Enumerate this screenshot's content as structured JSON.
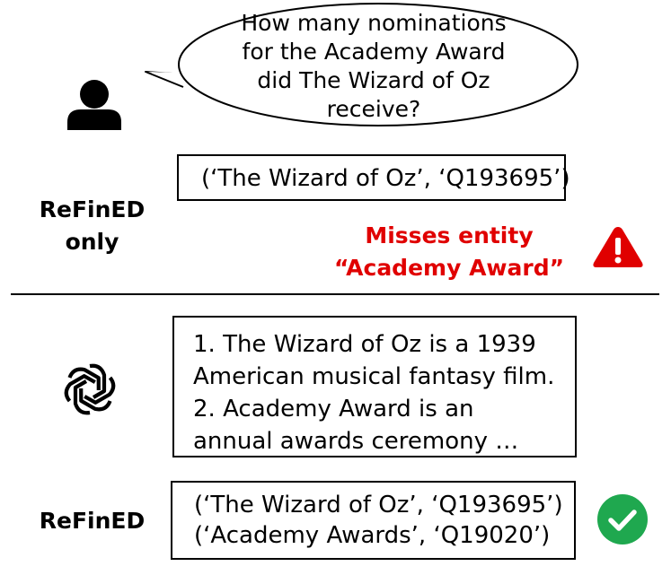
{
  "question": {
    "lines": [
      "How many nominations",
      "for the Academy Award",
      "did The Wizard of Oz",
      "receive?"
    ]
  },
  "refined_only": {
    "label_line1": "ReFinED",
    "label_line2": "only",
    "output": "(‘The Wizard of Oz’, ‘Q193695’)",
    "warning_line1": "Misses entity",
    "warning_line2": "“Academy Award”"
  },
  "llm_context": {
    "lines": [
      "1. The Wizard of Oz is a 1939",
      "American musical fantasy film.",
      "2. Academy Award is an",
      "annual awards ceremony …"
    ]
  },
  "refined": {
    "label": "ReFinED",
    "outputs": [
      "(‘The Wizard of Oz’, ‘Q193695’)",
      "(‘Academy Awards’, ‘Q19020’)"
    ]
  },
  "colors": {
    "warning": "#e00000",
    "success": "#1fa84f"
  },
  "icons": {
    "user": "user-icon",
    "warning": "warning-icon",
    "llm": "openai-logo-icon",
    "success": "check-circle-icon"
  }
}
